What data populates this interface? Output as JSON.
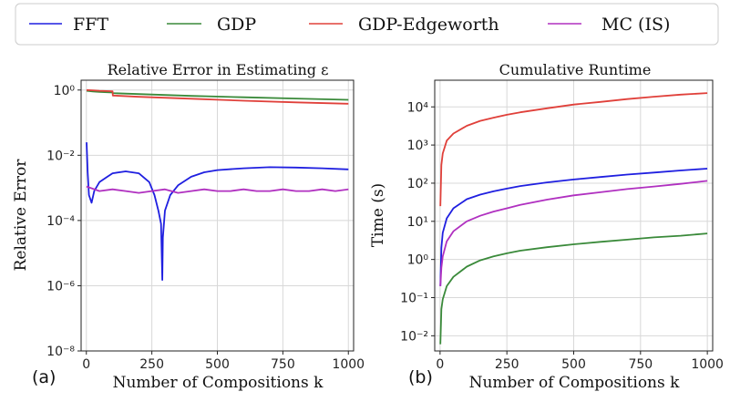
{
  "legend": [
    {
      "label": "FFT",
      "color": "#1f1fe0"
    },
    {
      "label": "GDP",
      "color": "#3a8a3a"
    },
    {
      "label": "GDP-Edgeworth",
      "color": "#e0403a"
    },
    {
      "label": "MC (IS)",
      "color": "#b030c0"
    }
  ],
  "chart_data": [
    {
      "type": "line",
      "panel_label": "(a)",
      "title": "Relative Error in Estimating ε",
      "xlabel": "Number of Compositions k",
      "ylabel": "Relative Error",
      "yscale": "log",
      "xlim": [
        -20,
        1020
      ],
      "ylim": [
        1e-08,
        2
      ],
      "xticks": [
        0,
        250,
        500,
        750,
        1000
      ],
      "xtick_labels": [
        "0",
        "250",
        "500",
        "750",
        "1000"
      ],
      "yticks": [
        1e-08,
        1e-06,
        0.0001,
        0.01,
        1
      ],
      "ytick_labels": [
        "10⁻⁸",
        "10⁻⁶",
        "10⁻⁴",
        "10⁻²",
        "10⁰"
      ],
      "grid": true,
      "series": [
        {
          "name": "GDP",
          "color": "#3a8a3a",
          "x": [
            1,
            25,
            50,
            100,
            101,
            200,
            400,
            600,
            800,
            1000
          ],
          "y": [
            0.95,
            0.9,
            0.87,
            0.84,
            0.8,
            0.75,
            0.66,
            0.6,
            0.55,
            0.5
          ]
        },
        {
          "name": "GDP-Edgeworth",
          "color": "#e0403a",
          "x": [
            1,
            25,
            50,
            100,
            101,
            200,
            400,
            600,
            800,
            1000
          ],
          "y": [
            1.0,
            0.98,
            0.95,
            0.92,
            0.68,
            0.62,
            0.54,
            0.47,
            0.42,
            0.38
          ]
        },
        {
          "name": "FFT",
          "color": "#1f1fe0",
          "x": [
            1,
            5,
            10,
            20,
            30,
            50,
            80,
            100,
            150,
            200,
            240,
            260,
            275,
            285,
            290,
            292,
            300,
            320,
            350,
            400,
            450,
            500,
            600,
            700,
            800,
            900,
            1000
          ],
          "y": [
            0.025,
            0.003,
            0.0006,
            0.00035,
            0.0008,
            0.0015,
            0.0022,
            0.0028,
            0.0032,
            0.0028,
            0.0015,
            0.0006,
            0.0002,
            8e-05,
            1.5e-06,
            3e-05,
            0.0002,
            0.0006,
            0.0012,
            0.0022,
            0.003,
            0.0035,
            0.004,
            0.0043,
            0.0042,
            0.004,
            0.0037
          ]
        },
        {
          "name": "MC (IS)",
          "color": "#b030c0",
          "x": [
            1,
            50,
            100,
            150,
            200,
            250,
            300,
            350,
            400,
            450,
            500,
            550,
            600,
            650,
            700,
            750,
            800,
            850,
            900,
            950,
            1000
          ],
          "y": [
            0.0011,
            0.0008,
            0.0009,
            0.0008,
            0.0007,
            0.0008,
            0.0009,
            0.0007,
            0.0008,
            0.0009,
            0.0008,
            0.0008,
            0.0009,
            0.0008,
            0.0008,
            0.0009,
            0.0008,
            0.0008,
            0.0009,
            0.0008,
            0.0009
          ]
        }
      ]
    },
    {
      "type": "line",
      "panel_label": "(b)",
      "title": "Cumulative Runtime",
      "xlabel": "Number of Compositions k",
      "ylabel": "Time (s)",
      "yscale": "log",
      "xlim": [
        -20,
        1020
      ],
      "ylim": [
        0.004,
        50000
      ],
      "xticks": [
        0,
        250,
        500,
        750,
        1000
      ],
      "xtick_labels": [
        "0",
        "250",
        "500",
        "750",
        "1000"
      ],
      "yticks": [
        0.01,
        0.1,
        1,
        10,
        100,
        1000,
        10000
      ],
      "ytick_labels": [
        "10⁻²",
        "10⁻¹",
        "10⁰",
        "10¹",
        "10²",
        "10³",
        "10⁴"
      ],
      "grid": true,
      "series": [
        {
          "name": "GDP-Edgeworth",
          "color": "#e0403a",
          "x": [
            1,
            5,
            10,
            25,
            50,
            100,
            150,
            200,
            250,
            300,
            400,
            500,
            600,
            700,
            800,
            900,
            1000
          ],
          "y": [
            25,
            300,
            600,
            1300,
            2000,
            3200,
            4300,
            5200,
            6200,
            7200,
            9200,
            11500,
            13500,
            16000,
            18500,
            21000,
            23000
          ]
        },
        {
          "name": "FFT",
          "color": "#1f1fe0",
          "x": [
            1,
            5,
            10,
            25,
            50,
            100,
            150,
            200,
            250,
            300,
            400,
            500,
            600,
            700,
            800,
            900,
            1000
          ],
          "y": [
            0.2,
            2,
            5,
            12,
            22,
            38,
            50,
            61,
            72,
            84,
            105,
            125,
            145,
            168,
            190,
            215,
            240
          ]
        },
        {
          "name": "MC (IS)",
          "color": "#b030c0",
          "x": [
            1,
            5,
            10,
            25,
            50,
            100,
            150,
            200,
            250,
            300,
            400,
            500,
            600,
            700,
            800,
            900,
            1000
          ],
          "y": [
            0.2,
            0.6,
            1.2,
            3,
            5.5,
            10,
            14,
            18,
            22,
            27,
            37,
            48,
            58,
            70,
            82,
            96,
            115
          ]
        },
        {
          "name": "GDP",
          "color": "#3a8a3a",
          "x": [
            1,
            5,
            10,
            25,
            50,
            100,
            150,
            200,
            250,
            300,
            400,
            500,
            600,
            700,
            800,
            900,
            1000
          ],
          "y": [
            0.006,
            0.05,
            0.09,
            0.2,
            0.35,
            0.65,
            0.95,
            1.2,
            1.45,
            1.7,
            2.1,
            2.5,
            2.9,
            3.3,
            3.8,
            4.2,
            4.8
          ]
        }
      ]
    }
  ]
}
